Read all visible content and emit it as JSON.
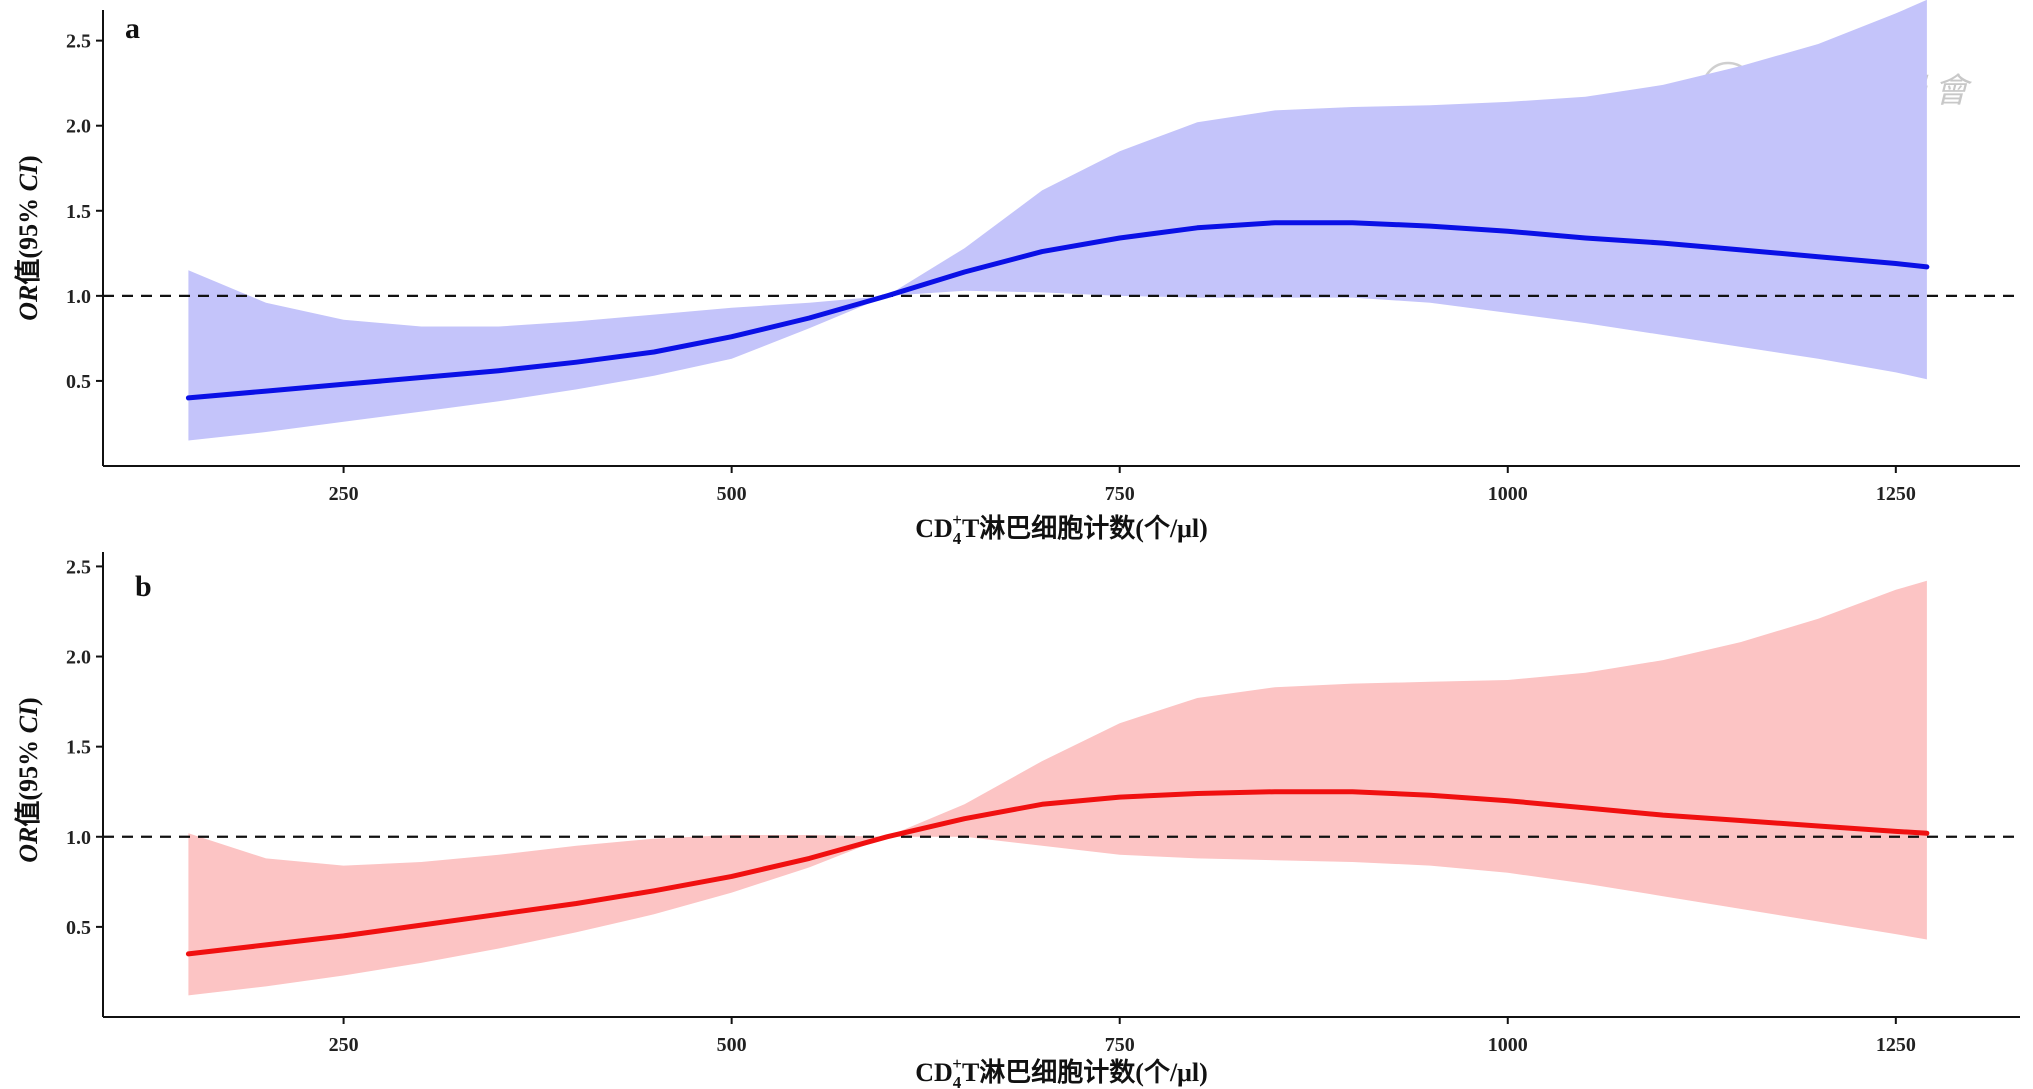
{
  "watermark": {
    "text": "中華醫學會",
    "icon": "society-seal-icon"
  },
  "chart_data": [
    {
      "type": "line",
      "panel_label": "a",
      "xlabel": {
        "prefix": "CD",
        "subscript": "4",
        "superscript": "+",
        "main": "T淋巴细胞计数(个/μl)"
      },
      "ylabel": {
        "italic1": "OR",
        "mid": "值(95% ",
        "italic2": "CI",
        "end": ")"
      },
      "xlim": [
        95,
        1330
      ],
      "ylim": [
        0.0,
        2.68
      ],
      "x_ticks": [
        250,
        500,
        750,
        1000,
        1250
      ],
      "x_tick_labels": [
        "250",
        "500",
        "750",
        "1000",
        "1250"
      ],
      "y_ticks": [
        0.5,
        1.0,
        1.5,
        2.0,
        2.5
      ],
      "y_tick_labels": [
        "0.5",
        "1.0",
        "1.5",
        "2.0",
        "2.5"
      ],
      "reference_line": 1.0,
      "line_color": "#0a10e6",
      "band_color": "#c4c4fa",
      "x": [
        150,
        200,
        250,
        300,
        350,
        400,
        450,
        500,
        550,
        600,
        650,
        700,
        750,
        800,
        850,
        900,
        950,
        1000,
        1050,
        1100,
        1150,
        1200,
        1250,
        1270
      ],
      "or": [
        0.4,
        0.44,
        0.48,
        0.52,
        0.56,
        0.61,
        0.67,
        0.76,
        0.87,
        1.0,
        1.14,
        1.26,
        1.34,
        1.4,
        1.43,
        1.43,
        1.41,
        1.38,
        1.34,
        1.31,
        1.27,
        1.23,
        1.19,
        1.17
      ],
      "lower": [
        0.15,
        0.2,
        0.26,
        0.32,
        0.38,
        0.45,
        0.53,
        0.63,
        0.81,
        1.0,
        1.03,
        1.02,
        1.0,
        0.99,
        0.99,
        0.99,
        0.96,
        0.9,
        0.84,
        0.77,
        0.7,
        0.63,
        0.55,
        0.51
      ],
      "upper": [
        1.15,
        0.96,
        0.86,
        0.82,
        0.82,
        0.85,
        0.89,
        0.93,
        0.96,
        1.0,
        1.28,
        1.62,
        1.85,
        2.02,
        2.09,
        2.11,
        2.12,
        2.14,
        2.17,
        2.24,
        2.35,
        2.48,
        2.66,
        2.74
      ]
    },
    {
      "type": "line",
      "panel_label": "b",
      "xlabel": {
        "prefix": "CD",
        "subscript": "4",
        "superscript": "+",
        "main": "T淋巴细胞计数(个/μl)"
      },
      "ylabel": {
        "italic1": "OR",
        "mid": "值(95% ",
        "italic2": "CI",
        "end": ")"
      },
      "xlim": [
        95,
        1330
      ],
      "ylim": [
        0.0,
        2.58
      ],
      "x_ticks": [
        250,
        500,
        750,
        1000,
        1250
      ],
      "x_tick_labels": [
        "250",
        "500",
        "750",
        "1000",
        "1250"
      ],
      "y_ticks": [
        0.5,
        1.0,
        1.5,
        2.0,
        2.5
      ],
      "y_tick_labels": [
        "0.5",
        "1.0",
        "1.5",
        "2.0",
        "2.5"
      ],
      "reference_line": 1.0,
      "line_color": "#f01010",
      "band_color": "#fcc4c4",
      "x": [
        150,
        200,
        250,
        300,
        350,
        400,
        450,
        500,
        550,
        600,
        650,
        700,
        750,
        800,
        850,
        900,
        950,
        1000,
        1050,
        1100,
        1150,
        1200,
        1250,
        1270
      ],
      "or": [
        0.35,
        0.4,
        0.45,
        0.51,
        0.57,
        0.63,
        0.7,
        0.78,
        0.88,
        1.0,
        1.1,
        1.18,
        1.22,
        1.24,
        1.25,
        1.25,
        1.23,
        1.2,
        1.16,
        1.12,
        1.09,
        1.06,
        1.03,
        1.02
      ],
      "lower": [
        0.12,
        0.17,
        0.23,
        0.3,
        0.38,
        0.47,
        0.57,
        0.69,
        0.83,
        1.0,
        1.0,
        0.95,
        0.9,
        0.88,
        0.87,
        0.86,
        0.84,
        0.8,
        0.74,
        0.67,
        0.6,
        0.53,
        0.46,
        0.43
      ],
      "upper": [
        1.02,
        0.88,
        0.84,
        0.86,
        0.9,
        0.95,
        0.99,
        1.01,
        1.01,
        1.0,
        1.18,
        1.42,
        1.63,
        1.77,
        1.83,
        1.85,
        1.86,
        1.87,
        1.91,
        1.98,
        2.08,
        2.21,
        2.37,
        2.42
      ]
    }
  ]
}
